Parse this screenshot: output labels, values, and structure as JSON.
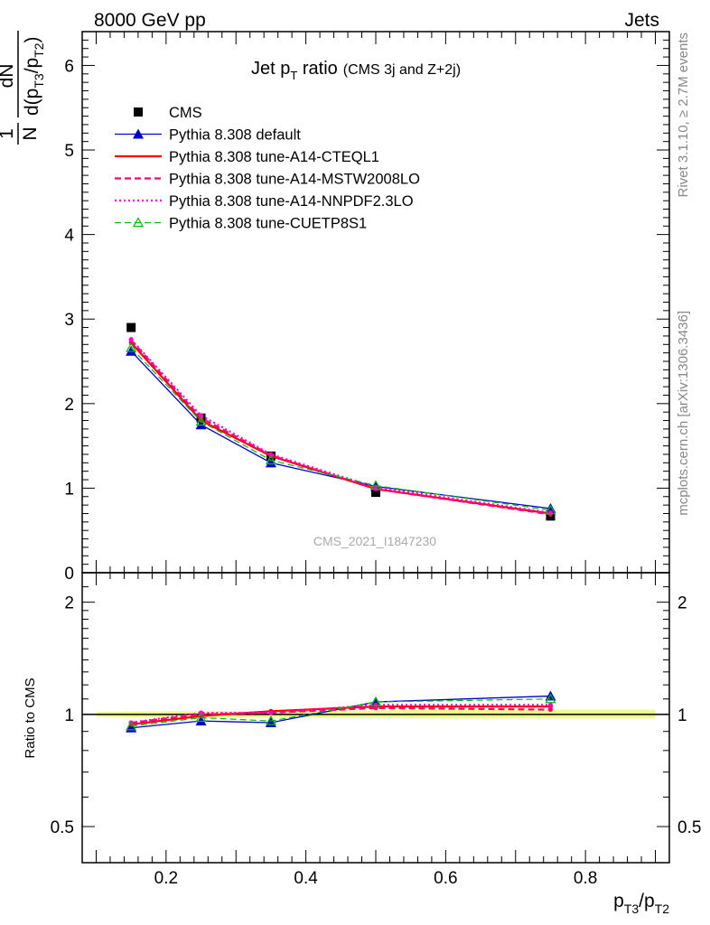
{
  "header": {
    "left": "8000 GeV pp",
    "right": "Jets"
  },
  "title": {
    "main_prefix": "Jet p",
    "main_sub": "T",
    "main_suffix": " ratio",
    "detail": "(CMS 3j and Z+2j)"
  },
  "ylabel_main": {
    "one": "1",
    "N": "N",
    "dN": "dN",
    "d_open": "d(p",
    "sub1": "T3",
    "slash": "/p",
    "sub2": "T2",
    "close": ")"
  },
  "ylabel_ratio": "Ratio to CMS",
  "xlabel": {
    "p1": "p",
    "sub1": "T3",
    "p2": "/p",
    "sub2": "T2"
  },
  "watermark": "CMS_2021_I1847230",
  "side_texts": {
    "rivet": "Rivet 3.1.10, ≥ 2.7M events",
    "mcplots": "mcplots.cern.ch [arXiv:1306.3436]"
  },
  "colors": {
    "cms": "#000000",
    "default": "#0000cc",
    "cteql1": "#ff0000",
    "mstw": "#ff0077",
    "nnpdf": "#ff00cc",
    "cuetp": "#00bb00",
    "band": "#eeff88"
  },
  "chart_data": [
    {
      "type": "line",
      "panel": "main",
      "x": [
        0.15,
        0.25,
        0.35,
        0.5,
        0.75
      ],
      "xlim": [
        0.08,
        0.92
      ],
      "ylim": [
        0,
        6.4
      ],
      "yticks": [
        "0",
        "1",
        "2",
        "3",
        "4",
        "5",
        "6"
      ],
      "xticks": [
        "0.2",
        "0.4",
        "0.6",
        "0.8"
      ],
      "legend_position": "top-left",
      "series": [
        {
          "name": "CMS",
          "key": "cms",
          "marker": "square",
          "dash": "none",
          "values": [
            2.9,
            1.83,
            1.38,
            0.95,
            0.67
          ]
        },
        {
          "name": "Pythia 8.308 default",
          "key": "default",
          "marker": "triangle",
          "dash": "solid",
          "values": [
            2.62,
            1.75,
            1.3,
            1.02,
            0.76
          ]
        },
        {
          "name": "Pythia 8.308 tune-A14-CTEQL1",
          "key": "cteql1",
          "marker": "dot",
          "dash": "solid",
          "values": [
            2.72,
            1.8,
            1.38,
            0.99,
            0.7
          ]
        },
        {
          "name": "Pythia 8.308 tune-A14-MSTW2008LO",
          "key": "mstw",
          "marker": "dot",
          "dash": "dashed",
          "values": [
            2.75,
            1.83,
            1.39,
            0.99,
            0.69
          ]
        },
        {
          "name": "Pythia 8.308 tune-A14-NNPDF2.3LO",
          "key": "nnpdf",
          "marker": "dot",
          "dash": "dotted",
          "values": [
            2.76,
            1.86,
            1.4,
            1.01,
            0.71
          ]
        },
        {
          "name": "Pythia 8.308 tune-CUETP8S1",
          "key": "cuetp",
          "marker": "open-triangle",
          "dash": "dashed",
          "values": [
            2.66,
            1.79,
            1.33,
            1.03,
            0.74
          ]
        }
      ]
    },
    {
      "type": "line",
      "panel": "ratio",
      "ylabel": "Ratio to CMS",
      "x": [
        0.15,
        0.25,
        0.35,
        0.5,
        0.75
      ],
      "xlim": [
        0.08,
        0.92
      ],
      "ylim": [
        0.4,
        2.4
      ],
      "log_y": true,
      "yticks": [
        "0.5",
        "1",
        "2"
      ],
      "xticks": [
        "0.2",
        "0.4",
        "0.6",
        "0.8"
      ],
      "band": {
        "x": [
          0.1,
          0.2,
          0.3,
          0.4,
          0.6,
          0.9
        ],
        "lower": [
          0.985,
          0.98,
          0.98,
          0.98,
          0.975,
          0.975
        ],
        "upper": [
          1.015,
          1.02,
          1.02,
          1.02,
          1.03,
          1.03
        ]
      },
      "series": [
        {
          "name": "Pythia 8.308 default",
          "key": "default",
          "marker": "triangle",
          "dash": "solid",
          "values": [
            0.92,
            0.96,
            0.95,
            1.08,
            1.12
          ]
        },
        {
          "name": "Pythia 8.308 tune-A14-CTEQL1",
          "key": "cteql1",
          "marker": "dot",
          "dash": "solid",
          "values": [
            0.94,
            0.99,
            1.02,
            1.05,
            1.05
          ]
        },
        {
          "name": "Pythia 8.308 tune-A14-MSTW2008LO",
          "key": "mstw",
          "marker": "dot",
          "dash": "dashed",
          "values": [
            0.95,
            1.0,
            1.01,
            1.04,
            1.03
          ]
        },
        {
          "name": "Pythia 8.308 tune-A14-NNPDF2.3LO",
          "key": "nnpdf",
          "marker": "dot",
          "dash": "dotted",
          "values": [
            0.95,
            1.01,
            1.01,
            1.06,
            1.06
          ]
        },
        {
          "name": "Pythia 8.308 tune-CUETP8S1",
          "key": "cuetp",
          "marker": "open-triangle",
          "dash": "dashed",
          "values": [
            0.93,
            0.98,
            0.96,
            1.08,
            1.1
          ]
        }
      ]
    }
  ]
}
